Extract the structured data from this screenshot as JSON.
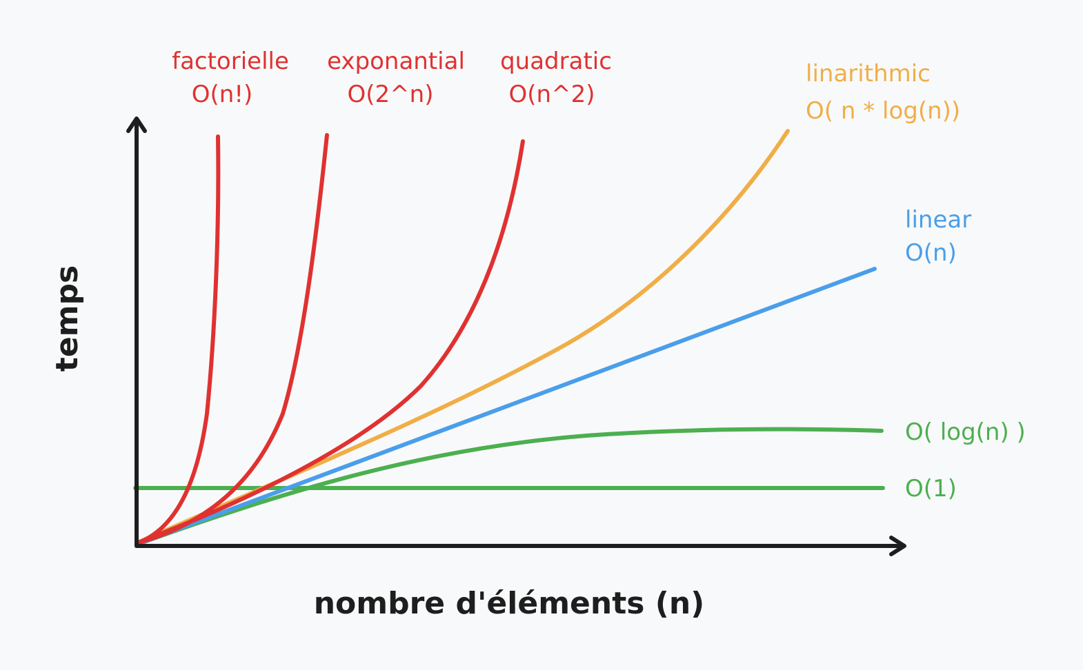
{
  "axes": {
    "x_label": "nombre d'éléments (n)",
    "y_label": "temps"
  },
  "colors": {
    "axis": "#1e1e1e",
    "red": "#e03131",
    "orange": "#f0ae47",
    "blue": "#4a9eea",
    "green": "#4caf50"
  },
  "curves": [
    {
      "id": "factorial",
      "name": "factorielle",
      "notation": "O(n!)",
      "color": "#e03131"
    },
    {
      "id": "exponential",
      "name": "exponantial",
      "notation": "O(2^n)",
      "color": "#e03131"
    },
    {
      "id": "quadratic",
      "name": "quadratic",
      "notation": "O(n^2)",
      "color": "#e03131"
    },
    {
      "id": "linearithmic",
      "name": "linarithmic",
      "notation": "O( n * log(n))",
      "color": "#f0ae47"
    },
    {
      "id": "linear",
      "name": "linear",
      "notation": "O(n)",
      "color": "#4a9eea"
    },
    {
      "id": "logarithmic",
      "name": "",
      "notation": "O( log(n) )",
      "color": "#4caf50"
    },
    {
      "id": "constant",
      "name": "",
      "notation": "O(1)",
      "color": "#4caf50"
    }
  ]
}
